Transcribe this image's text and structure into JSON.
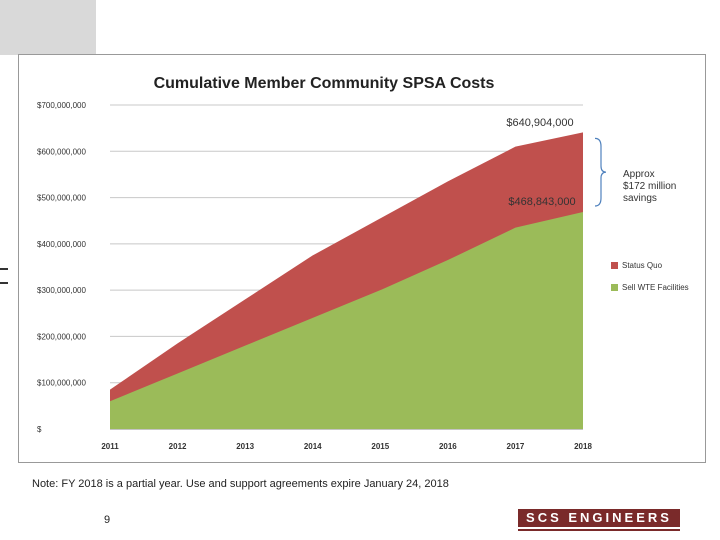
{
  "chart_data": {
    "type": "area",
    "title": "Cumulative Member Community SPSA Costs",
    "categories": [
      "2011",
      "2012",
      "2013",
      "2014",
      "2015",
      "2016",
      "2017",
      "2018"
    ],
    "ylim": [
      0,
      700000000
    ],
    "yticks": [
      "$",
      "$100,000,000",
      "$200,000,000",
      "$300,000,000",
      "$400,000,000",
      "$500,000,000",
      "$600,000,000",
      "$700,000,000"
    ],
    "series": [
      {
        "name": "Status Quo",
        "color": "#c0504d",
        "values": [
          85000000,
          185000000,
          280000000,
          375000000,
          455000000,
          535000000,
          610000000,
          640904000
        ]
      },
      {
        "name": "Sell WTE Facilities",
        "color": "#9bbb59",
        "values": [
          60000000,
          120000000,
          180000000,
          240000000,
          300000000,
          365000000,
          435000000,
          468843000
        ]
      }
    ],
    "annotations": {
      "top_value": "$640,904,000",
      "bottom_value": "$468,843,000",
      "savings": [
        "Approx",
        "$172 million",
        "savings"
      ]
    },
    "grid": true,
    "legend_position": "right"
  },
  "note": "Note: FY 2018 is a partial year.  Use and support agreements expire January 24, 2018",
  "page_number": "9",
  "brand": "SCS ENGINEERS"
}
